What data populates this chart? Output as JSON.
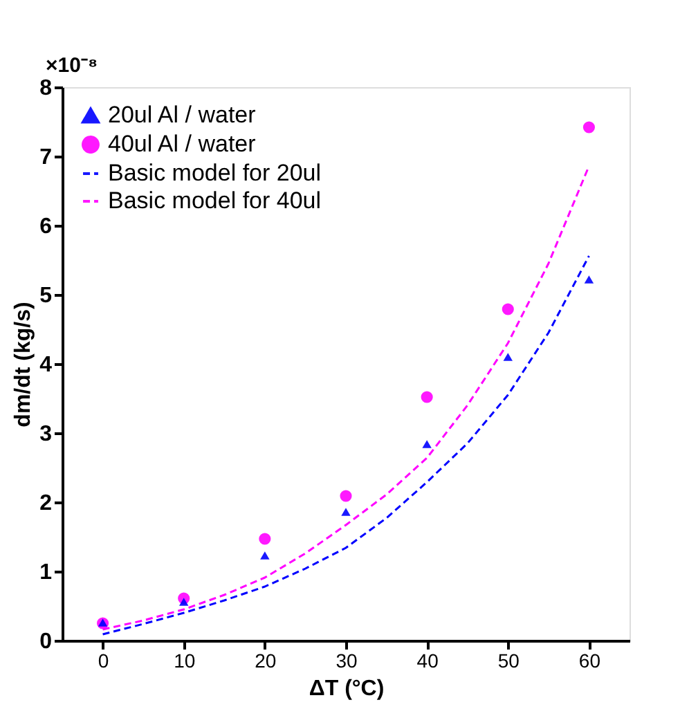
{
  "chart_data": {
    "type": "scatter",
    "xlabel": "ΔT (°C)",
    "ylabel": "dm/dt (kg/s)",
    "annotations": [
      "×10⁻⁸"
    ],
    "xlim": [
      -5,
      65
    ],
    "xticks": [
      0,
      10,
      20,
      30,
      40,
      50,
      60
    ],
    "ylim": [
      0,
      8
    ],
    "yticks": [
      0,
      1,
      2,
      3,
      4,
      5,
      6,
      7,
      8
    ],
    "grid": false,
    "legend": "top left",
    "series": [
      {
        "name": "20ul Al / water",
        "color": "#0000ff",
        "marker": "triangle",
        "x": [
          0,
          10,
          20,
          30,
          40,
          50,
          60
        ],
        "values": [
          0.26,
          0.56,
          1.23,
          1.86,
          2.84,
          4.1,
          5.22
        ]
      },
      {
        "name": "40ul Al / water",
        "color": "#ff00ff",
        "marker": "circle",
        "x": [
          0,
          10,
          20,
          30,
          40,
          50,
          60
        ],
        "values": [
          0.25,
          0.61,
          1.47,
          2.09,
          3.52,
          4.79,
          7.42
        ]
      },
      {
        "name": "Basic model for 20ul",
        "type": "line",
        "line_style": "dashed",
        "marker": "none",
        "color": "#0000ff",
        "x": [
          0,
          5,
          10,
          15,
          20,
          25,
          30,
          35,
          40,
          45,
          50,
          55,
          60
        ],
        "values": [
          0.09,
          0.24,
          0.4,
          0.58,
          0.78,
          1.04,
          1.34,
          1.77,
          2.29,
          2.85,
          3.55,
          4.45,
          5.56
        ]
      },
      {
        "name": "Basic model for 40ul",
        "type": "line",
        "line_style": "dashed",
        "marker": "none",
        "color": "#ff00ff",
        "x": [
          0,
          5,
          10,
          15,
          20,
          25,
          30,
          35,
          40,
          45,
          50,
          55,
          60
        ],
        "values": [
          0.16,
          0.29,
          0.45,
          0.66,
          0.91,
          1.26,
          1.67,
          2.11,
          2.64,
          3.4,
          4.3,
          5.45,
          6.86
        ]
      }
    ]
  }
}
